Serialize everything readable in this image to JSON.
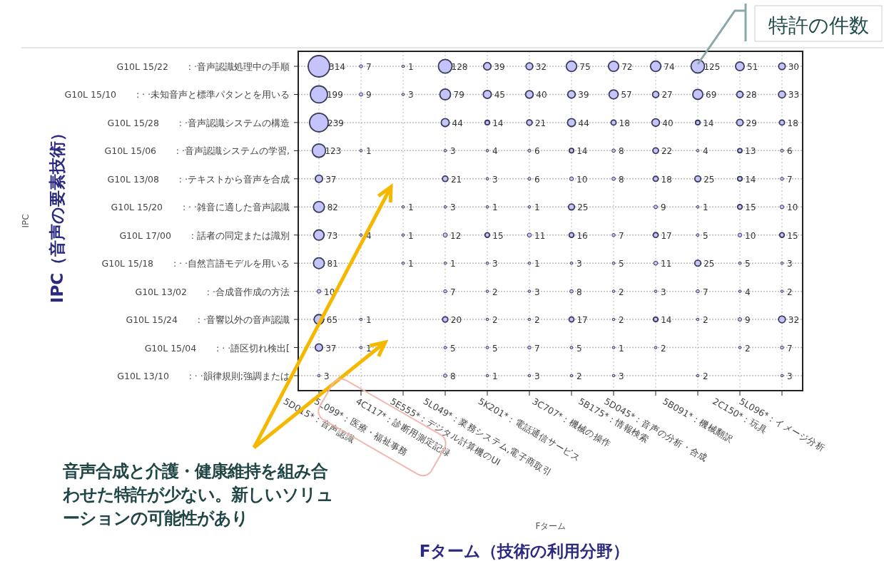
{
  "chart_data": {
    "type": "heatmap",
    "ylabel": "IPC",
    "color": "#c4c4fa",
    "data_labels": true,
    "grid": true,
    "categories": [
      "5D015*：音声認識",
      "5L099*：医療・福祉事務",
      "4C117*：診断用測定記録",
      "5E555*：デジタル計算機のUI",
      "5L049*：業務システム,電子商取引",
      "5K201*：電話通信サービス",
      "3C707*：機械の操作",
      "5B175*：情報検索",
      "5D045*：音声の分析・合成",
      "5B091*：機械翻訳",
      "2C150*：玩具",
      "5L096*：イメージ分析"
    ],
    "y_categories": [
      "G10L 15/22       : ·音声認識処理中の手順",
      "G10L 15/10       : · ·未知音声と標準パタンとを用いる",
      "G10L 15/28       : ·音声認識システムの構造",
      "G10L 15/06       : ·音声認識システムの学習,",
      "G10L 13/08       : ·テキストから音声を合成",
      "G10L 15/20       : · ·雑音に適した音声認識",
      "G10L 17/00       : 話者の同定または識別",
      "G10L 15/18       : · ·自然言語モデルを用いる",
      "G10L 13/02       : ·合成音作成の方法",
      "G10L 15/24       : ·音響以外の音声認識",
      "G10L 15/04       : · ·語区切れ検出[",
      "G10L 13/10       : · ·韻律規則;強調または"
    ],
    "cells": [
      [
        314,
        7,
        1,
        128,
        39,
        32,
        75,
        72,
        74,
        125,
        51,
        30
      ],
      [
        199,
        9,
        3,
        79,
        45,
        40,
        39,
        57,
        27,
        69,
        28,
        33
      ],
      [
        239,
        null,
        null,
        44,
        14,
        21,
        44,
        18,
        40,
        14,
        29,
        18
      ],
      [
        123,
        1,
        null,
        3,
        4,
        6,
        14,
        8,
        22,
        4,
        13,
        6
      ],
      [
        37,
        null,
        null,
        21,
        3,
        6,
        10,
        8,
        18,
        25,
        14,
        7
      ],
      [
        82,
        null,
        1,
        3,
        1,
        1,
        25,
        null,
        9,
        1,
        15,
        10
      ],
      [
        73,
        4,
        1,
        12,
        15,
        11,
        16,
        7,
        17,
        5,
        10,
        15
      ],
      [
        81,
        null,
        1,
        1,
        3,
        1,
        3,
        5,
        11,
        25,
        5,
        3
      ],
      [
        10,
        null,
        null,
        7,
        2,
        3,
        8,
        2,
        3,
        7,
        4,
        2
      ],
      [
        65,
        1,
        null,
        20,
        2,
        2,
        17,
        2,
        14,
        2,
        9,
        32
      ],
      [
        37,
        1,
        null,
        5,
        5,
        7,
        5,
        1,
        2,
        null,
        2,
        7
      ],
      [
        3,
        null,
        null,
        8,
        1,
        3,
        2,
        3,
        null,
        2,
        null,
        3
      ]
    ],
    "annotations": [
      "特許の件数",
      "IPC（音声の要素技術）",
      "Fターム（技術の利用分野）",
      "音声合成と介護・健康維持を組み合わせた特許が少ない。新しいソリューションの可能性があり",
      "Fターム"
    ]
  }
}
